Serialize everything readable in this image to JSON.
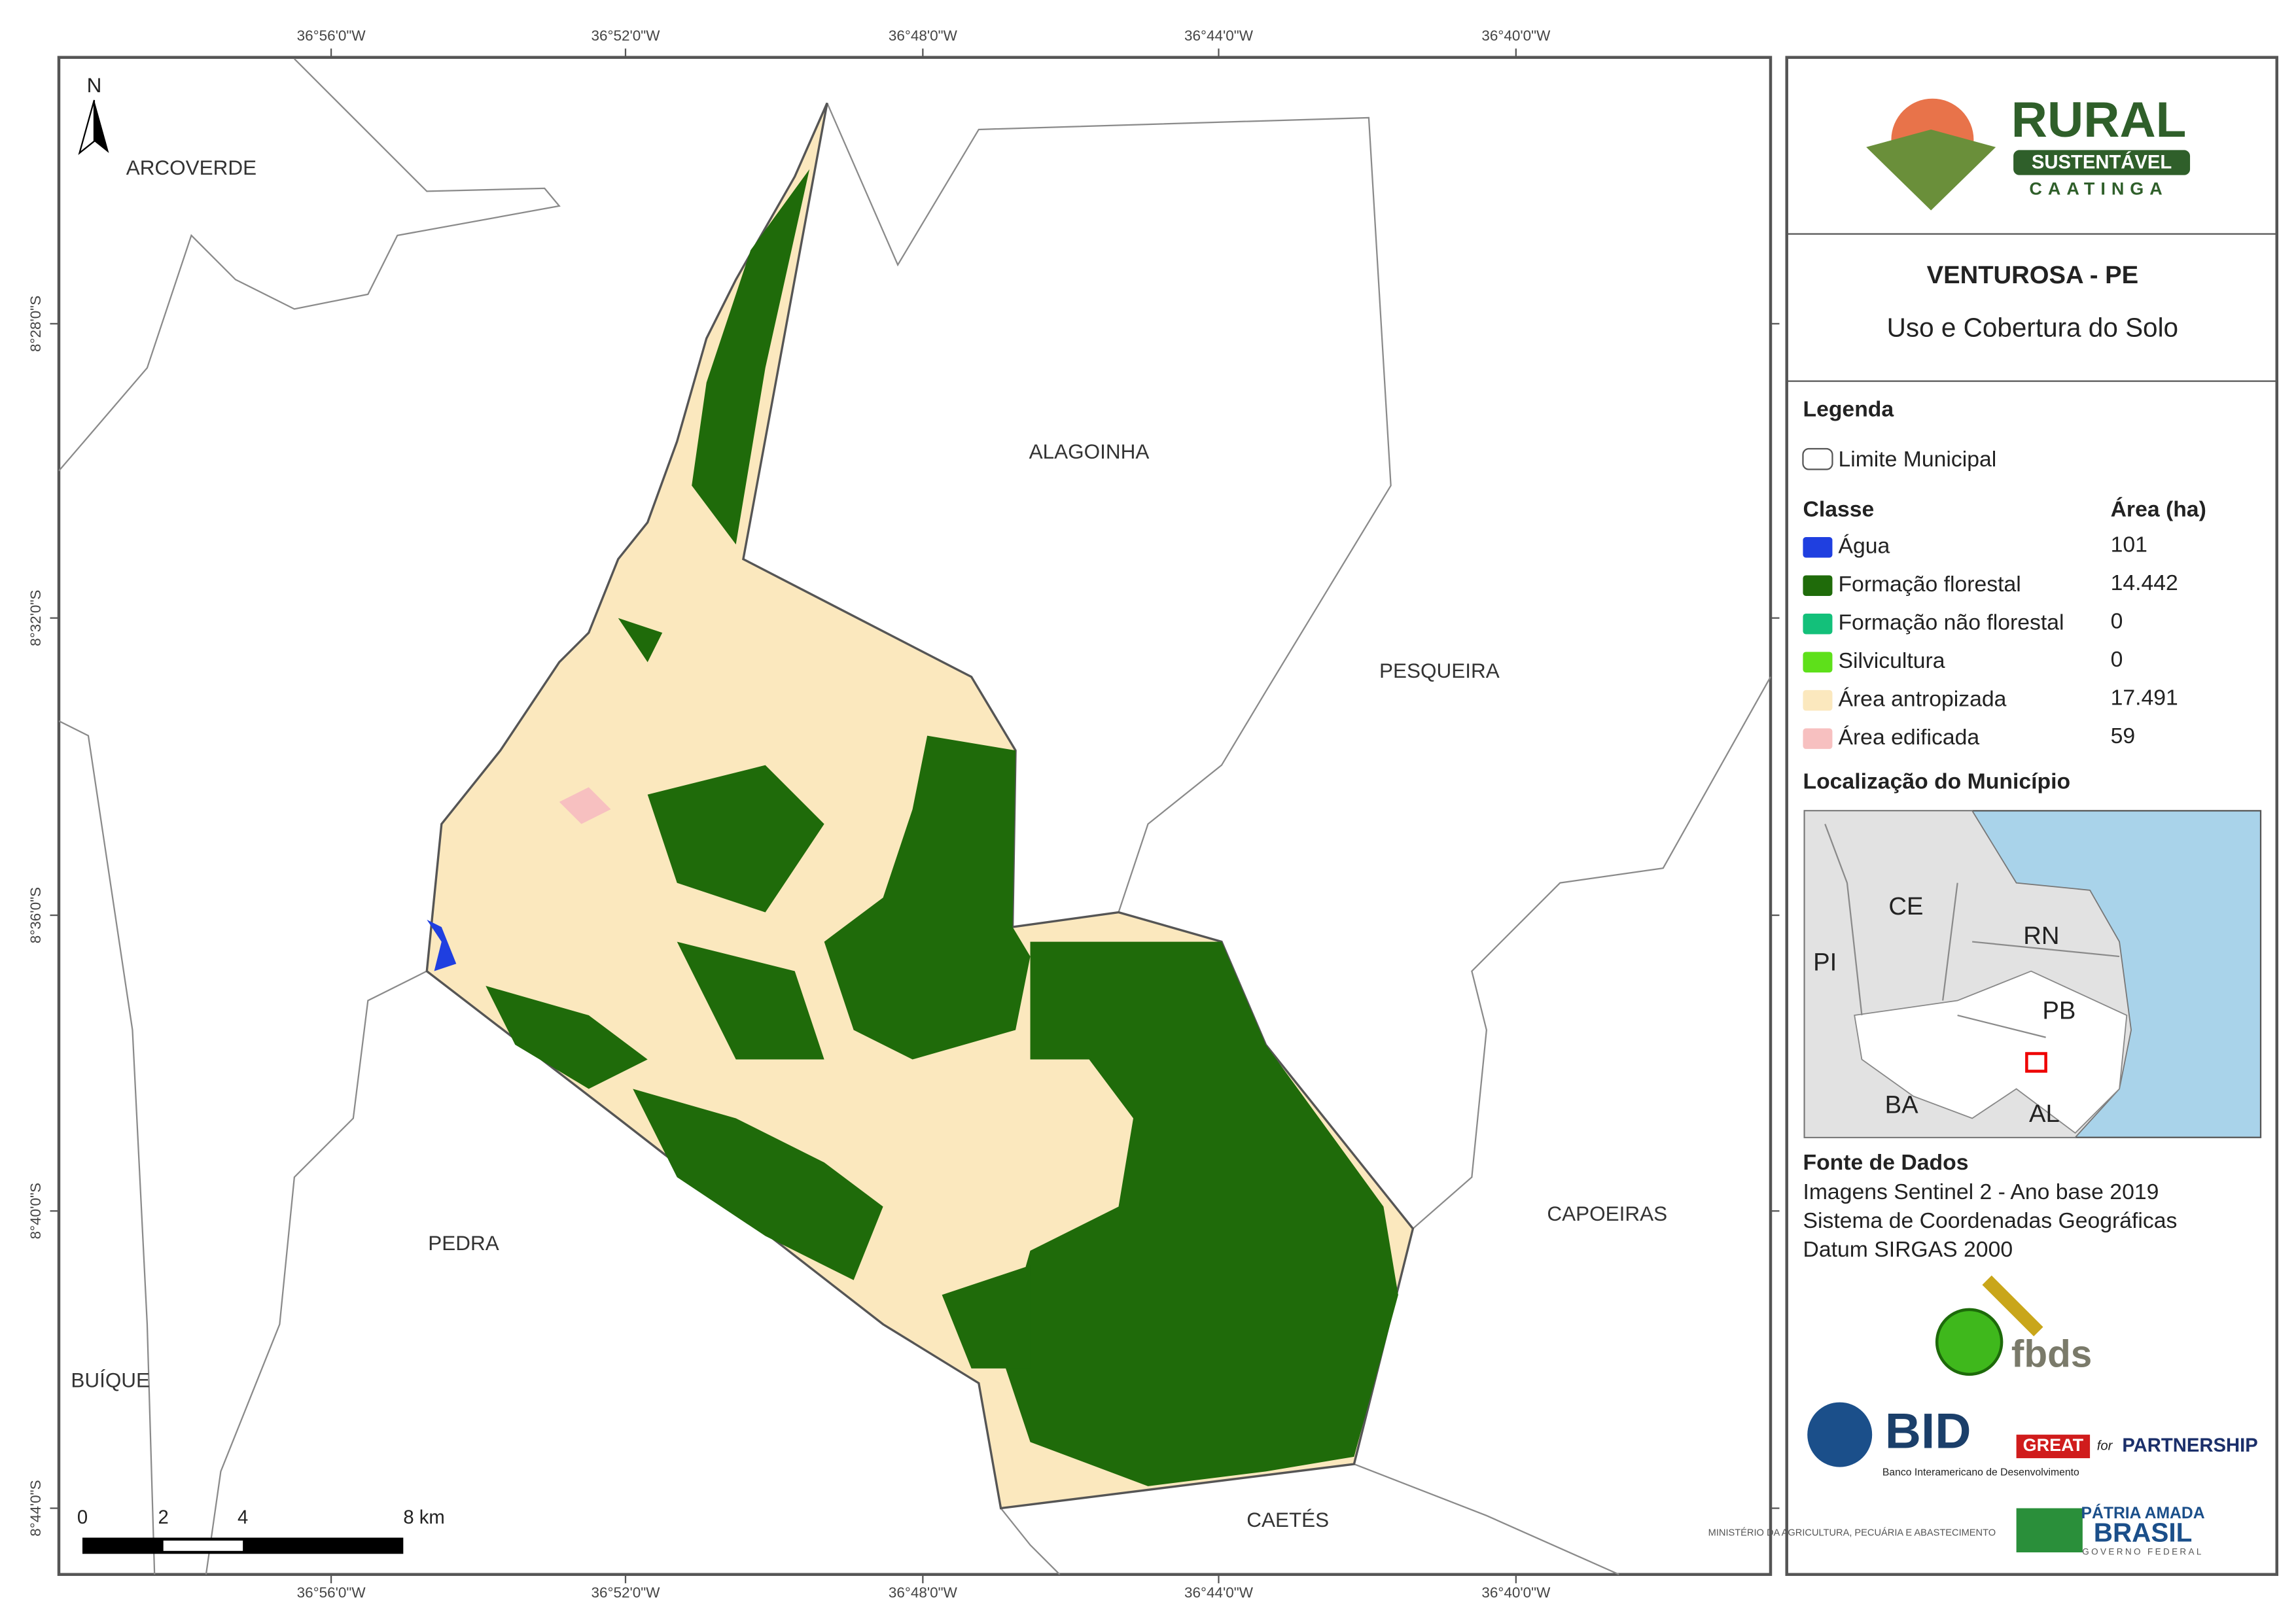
{
  "map": {
    "north": "N",
    "coordinate_labels": {
      "top": [
        "36°56'0\"W",
        "36°52'0\"W",
        "36°48'0\"W",
        "36°44'0\"W",
        "36°40'0\"W"
      ],
      "bottom": [
        "36°56'0\"W",
        "36°52'0\"W",
        "36°48'0\"W",
        "36°44'0\"W",
        "36°40'0\"W"
      ],
      "left": [
        "8°28'0\"S",
        "8°32'0\"S",
        "8°36'0\"S",
        "8°40'0\"S",
        "8°44'0\"S"
      ]
    },
    "place_labels": [
      "ARCOVERDE",
      "ALAGOINHA",
      "PESQUEIRA",
      "CAPOEIRAS",
      "PEDRA",
      "BUÍQUE",
      "CAETÉS"
    ],
    "scale_bar": [
      "0",
      "2",
      "4",
      "8 km"
    ]
  },
  "panel": {
    "logo": {
      "title": "RURAL",
      "subtitle": "SUSTENTÁVEL",
      "tagline": "CAATINGA"
    },
    "title": "VENTUROSA - PE",
    "subtitle": "Uso e Cobertura do Solo",
    "legend": {
      "heading": "Legenda",
      "boundary": "Limite Municipal",
      "class_header": "Classe",
      "area_header": "Área (ha)",
      "classes": [
        {
          "name": "Água",
          "color": "#1f3fe0",
          "area": "101"
        },
        {
          "name": "Formação florestal",
          "color": "#1f6b0a",
          "area": "14.442"
        },
        {
          "name": "Formação não florestal",
          "color": "#13c07a",
          "area": "0"
        },
        {
          "name": "Silvicultura",
          "color": "#5ee01a",
          "area": "0"
        },
        {
          "name": "Área antropizada",
          "color": "#fbe8be",
          "area": "17.491"
        },
        {
          "name": "Área edificada",
          "color": "#f7c0c0",
          "area": "59"
        }
      ]
    },
    "location": {
      "heading": "Localização do Município",
      "states": [
        "CE",
        "RN",
        "PI",
        "PB",
        "BA",
        "AL"
      ]
    },
    "sources": {
      "heading": "Fonte de Dados",
      "lines": [
        "Imagens Sentinel 2 - Ano base 2019",
        "Sistema de Coordenadas Geográficas",
        "Datum SIRGAS 2000"
      ]
    },
    "partners": {
      "fbds": "fbds",
      "bid": "BID",
      "bid_name": "Banco Interamericano de Desenvolvimento",
      "great": "GREAT",
      "great_for": "for",
      "great_partnership": "PARTNERSHIP",
      "ministry": "MINISTÉRIO DA AGRICULTURA, PECUÁRIA E ABASTECIMENTO",
      "patria": "PÁTRIA AMADA",
      "brasil": "BRASIL",
      "governo": "GOVERNO FEDERAL"
    }
  }
}
